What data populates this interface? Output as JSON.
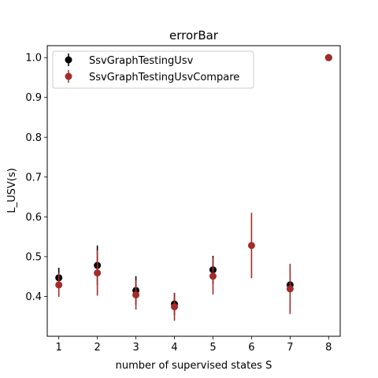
{
  "chart_data": {
    "type": "scatter",
    "title": "errorBar",
    "xlabel": "number of supervised states S",
    "ylabel": "L_USV(s)",
    "xlim": [
      0.7,
      8.3
    ],
    "ylim": [
      0.3,
      1.03
    ],
    "xticks": [
      1,
      2,
      3,
      4,
      5,
      6,
      7,
      8
    ],
    "yticks": [
      0.4,
      0.5,
      0.6,
      0.7,
      0.8,
      0.9,
      1.0
    ],
    "ytick_labels": [
      "0.4",
      "0.5",
      "0.6",
      "0.7",
      "0.8",
      "0.9",
      "1.0"
    ],
    "grid": false,
    "legend_position": "top-left",
    "series": [
      {
        "name": "SsvGraphTestingUsv",
        "color": "#000000",
        "marker": "circle",
        "x": [
          1,
          2,
          3,
          4,
          5,
          7,
          8
        ],
        "y": [
          0.447,
          0.478,
          0.415,
          0.381,
          0.467,
          0.429,
          1.0
        ],
        "err": [
          0.025,
          0.05,
          0.036,
          0.028,
          0.035,
          0.011,
          0.0
        ]
      },
      {
        "name": "SsvGraphTestingUsvCompare",
        "color": "#a52a2a",
        "marker": "circle",
        "x": [
          1,
          2,
          3,
          4,
          5,
          6,
          7,
          8
        ],
        "y": [
          0.429,
          0.459,
          0.404,
          0.374,
          0.451,
          0.528,
          0.419,
          1.0
        ],
        "err": [
          0.03,
          0.057,
          0.037,
          0.035,
          0.046,
          0.082,
          0.063,
          0.0
        ]
      }
    ]
  }
}
